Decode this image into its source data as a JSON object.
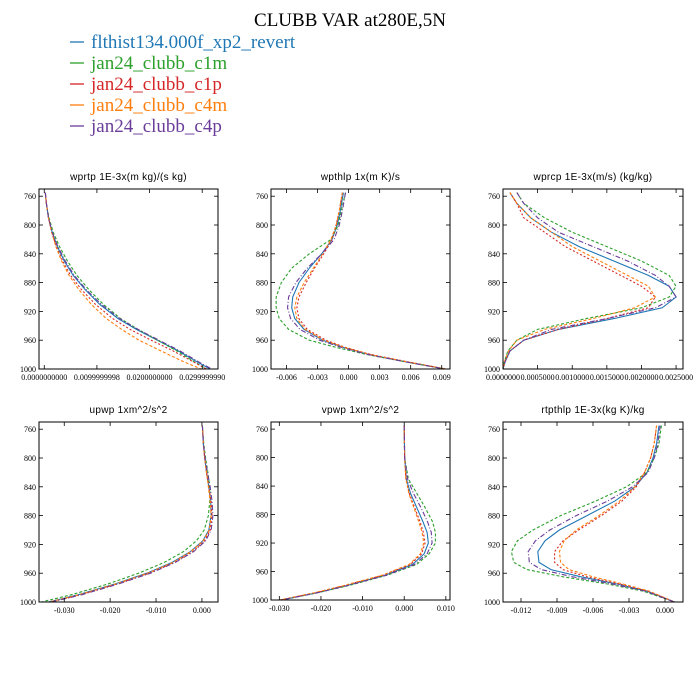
{
  "figure_title": "CLUBB VAR at280E,5N",
  "legend": [
    {
      "label": "flthist134.000f_xp2_revert",
      "color": "#1f77b4"
    },
    {
      "label": "jan24_clubb_c1m",
      "color": "#2ca02c"
    },
    {
      "label": "jan24_clubb_c1p",
      "color": "#d62728"
    },
    {
      "label": "jan24_clubb_c4m",
      "color": "#ff7f0e"
    },
    {
      "label": "jan24_clubb_c4p",
      "color": "#6a3d9a"
    }
  ],
  "chart_data": [
    {
      "type": "line",
      "title": "wprtp  1E-3x(m kg)/(s kg)",
      "xlim": [
        -0.001,
        0.033
      ],
      "ylim": [
        1000,
        750
      ],
      "yticks": [
        760,
        800,
        840,
        880,
        920,
        960,
        1000
      ],
      "xticks": [
        0.0,
        0.01,
        0.02,
        0.03
      ],
      "xtick_labels": [
        "0.0000000000",
        "0.0099999998",
        "0.0200000000",
        "0.0299999990"
      ],
      "y": [
        755,
        770,
        790,
        810,
        830,
        850,
        870,
        890,
        910,
        930,
        945,
        960,
        975,
        990,
        1000
      ],
      "series": [
        {
          "name": "flthist134.000f_xp2_revert",
          "values": [
            0.0002,
            0.0004,
            0.0008,
            0.0015,
            0.0025,
            0.0038,
            0.0055,
            0.0078,
            0.0105,
            0.014,
            0.0175,
            0.0215,
            0.0255,
            0.029,
            0.0315
          ]
        },
        {
          "name": "jan24_clubb_c1m",
          "values": [
            0.0002,
            0.0004,
            0.0009,
            0.0017,
            0.0029,
            0.0044,
            0.0062,
            0.0085,
            0.0112,
            0.0145,
            0.0178,
            0.0215,
            0.0252,
            0.0285,
            0.0308
          ]
        },
        {
          "name": "jan24_clubb_c1p",
          "values": [
            0.0002,
            0.0004,
            0.0008,
            0.0014,
            0.0023,
            0.0035,
            0.005,
            0.0071,
            0.0097,
            0.013,
            0.0163,
            0.0203,
            0.0245,
            0.0283,
            0.0308
          ]
        },
        {
          "name": "jan24_clubb_c4m",
          "values": [
            0.0002,
            0.0004,
            0.0008,
            0.0014,
            0.0022,
            0.0033,
            0.0047,
            0.0066,
            0.0089,
            0.0118,
            0.0147,
            0.018,
            0.0222,
            0.0265,
            0.0298
          ]
        },
        {
          "name": "jan24_clubb_c4p",
          "values": [
            0.0002,
            0.0004,
            0.0008,
            0.0015,
            0.0026,
            0.004,
            0.0057,
            0.008,
            0.0108,
            0.0143,
            0.0178,
            0.0218,
            0.0258,
            0.0293,
            0.0318
          ]
        }
      ]
    },
    {
      "type": "line",
      "title": "wpthlp  1x(m K)/s",
      "xlim": [
        -0.0075,
        0.0098
      ],
      "ylim": [
        1000,
        750
      ],
      "yticks": [
        760,
        800,
        840,
        880,
        920,
        960,
        1000
      ],
      "xticks": [
        -0.006,
        -0.003,
        0.0,
        0.003,
        0.006,
        0.009
      ],
      "xtick_labels": [
        "-0.006",
        "-0.003",
        "0.000",
        "0.003",
        "0.006",
        "0.009"
      ],
      "y": [
        755,
        780,
        800,
        820,
        840,
        860,
        880,
        900,
        915,
        930,
        945,
        960,
        970,
        980,
        990,
        1000
      ],
      "series": [
        {
          "name": "flthist134.000f_xp2_revert",
          "values": [
            -0.0005,
            -0.0008,
            -0.0011,
            -0.0016,
            -0.0026,
            -0.0038,
            -0.0048,
            -0.0054,
            -0.0055,
            -0.0052,
            -0.0043,
            -0.0025,
            -0.0005,
            0.002,
            0.0055,
            0.0093
          ]
        },
        {
          "name": "jan24_clubb_c1m",
          "values": [
            -0.0003,
            -0.0007,
            -0.001,
            -0.0017,
            -0.0038,
            -0.0055,
            -0.0065,
            -0.007,
            -0.007,
            -0.0067,
            -0.0058,
            -0.0038,
            -0.0012,
            0.0018,
            0.0055,
            0.0094
          ]
        },
        {
          "name": "jan24_clubb_c1p",
          "values": [
            -0.0006,
            -0.0009,
            -0.0012,
            -0.0016,
            -0.0024,
            -0.0033,
            -0.0041,
            -0.0048,
            -0.005,
            -0.0048,
            -0.004,
            -0.0022,
            -0.0003,
            0.0022,
            0.0057,
            0.0094
          ]
        },
        {
          "name": "jan24_clubb_c4m",
          "values": [
            -0.0006,
            -0.0009,
            -0.0012,
            -0.0017,
            -0.0025,
            -0.0034,
            -0.0043,
            -0.005,
            -0.0052,
            -0.005,
            -0.0042,
            -0.0024,
            -0.0004,
            0.0021,
            0.0056,
            0.0094
          ]
        },
        {
          "name": "jan24_clubb_c4p",
          "values": [
            -0.0003,
            -0.0006,
            -0.0009,
            -0.0014,
            -0.0026,
            -0.004,
            -0.0051,
            -0.0058,
            -0.0059,
            -0.0056,
            -0.0047,
            -0.0028,
            -0.0007,
            0.0019,
            0.0055,
            0.0093
          ]
        }
      ]
    },
    {
      "type": "line",
      "title": "wprcp  1E-3x(m/s) (kg/kg)",
      "xlim": [
        0.0,
        0.0026
      ],
      "ylim": [
        1000,
        750
      ],
      "yticks": [
        760,
        800,
        840,
        880,
        920,
        960,
        1000
      ],
      "xticks": [
        0.0,
        0.0005,
        0.001,
        0.0015,
        0.002,
        0.0025
      ],
      "xtick_labels": [
        "0.0000000",
        "0.0005000",
        "0.0010000",
        "0.0015000",
        "0.0020000",
        "0.0025000"
      ],
      "y": [
        755,
        770,
        790,
        810,
        830,
        850,
        870,
        885,
        900,
        915,
        930,
        945,
        960,
        975,
        990,
        1000
      ],
      "series": [
        {
          "name": "flthist134.000f_xp2_revert",
          "values": [
            0.0001,
            0.0002,
            0.0004,
            0.0007,
            0.0011,
            0.0016,
            0.0021,
            0.0024,
            0.0025,
            0.0023,
            0.0016,
            0.0008,
            0.0003,
            0.0001,
            3e-05,
            0.0
          ]
        },
        {
          "name": "jan24_clubb_c1m",
          "values": [
            0.0002,
            0.0003,
            0.0006,
            0.001,
            0.0015,
            0.002,
            0.0024,
            0.0025,
            0.0024,
            0.002,
            0.0012,
            0.0005,
            0.0002,
            7e-05,
            2e-05,
            0.0
          ]
        },
        {
          "name": "jan24_clubb_c1p",
          "values": [
            0.0001,
            0.0002,
            0.0003,
            0.0006,
            0.0009,
            0.0013,
            0.0017,
            0.002,
            0.0022,
            0.0021,
            0.0015,
            0.0008,
            0.0003,
            0.0001,
            3e-05,
            0.0
          ]
        },
        {
          "name": "jan24_clubb_c4m",
          "values": [
            0.0001,
            0.0002,
            0.0004,
            0.0007,
            0.001,
            0.0014,
            0.0018,
            0.0021,
            0.0022,
            0.0019,
            0.0013,
            0.0006,
            0.0002,
            8e-05,
            2e-05,
            0.0
          ]
        },
        {
          "name": "jan24_clubb_c4p",
          "values": [
            0.0002,
            0.0003,
            0.0005,
            0.0008,
            0.0013,
            0.0018,
            0.0022,
            0.0024,
            0.0025,
            0.0022,
            0.0015,
            0.0007,
            0.0003,
            0.0001,
            3e-05,
            0.0
          ]
        }
      ]
    },
    {
      "type": "line",
      "title": "upwp  1xm^2/s^2",
      "xlim": [
        -0.0355,
        0.0035
      ],
      "ylim": [
        1000,
        750
      ],
      "yticks": [
        760,
        800,
        840,
        880,
        920,
        960,
        1000
      ],
      "xticks": [
        -0.03,
        -0.02,
        -0.01,
        0.0
      ],
      "xtick_labels": [
        "-0.030",
        "-0.020",
        "-0.010",
        "0.000"
      ],
      "y": [
        755,
        780,
        800,
        820,
        840,
        860,
        880,
        900,
        915,
        930,
        945,
        960,
        975,
        990,
        1000
      ],
      "series": [
        {
          "name": "flthist134.000f_xp2_revert",
          "values": [
            0.0001,
            0.0003,
            0.0006,
            0.001,
            0.0015,
            0.0019,
            0.002,
            0.0015,
            0.0002,
            -0.0025,
            -0.0065,
            -0.012,
            -0.019,
            -0.027,
            -0.0335
          ]
        },
        {
          "name": "jan24_clubb_c1m",
          "values": [
            0.0001,
            0.0004,
            0.0008,
            0.0013,
            0.0017,
            0.0017,
            0.0014,
            0.0005,
            -0.0012,
            -0.004,
            -0.0082,
            -0.0138,
            -0.0205,
            -0.0285,
            -0.035
          ]
        },
        {
          "name": "jan24_clubb_c1p",
          "values": [
            0.0001,
            0.0003,
            0.0006,
            0.001,
            0.0015,
            0.002,
            0.0022,
            0.0018,
            0.0006,
            -0.002,
            -0.006,
            -0.0115,
            -0.0185,
            -0.0265,
            -0.033
          ]
        },
        {
          "name": "jan24_clubb_c4m",
          "values": [
            0.0001,
            0.0003,
            0.0006,
            0.001,
            0.0014,
            0.0018,
            0.002,
            0.0016,
            0.0003,
            -0.0024,
            -0.0063,
            -0.0118,
            -0.0188,
            -0.0268,
            -0.0333
          ]
        },
        {
          "name": "jan24_clubb_c4p",
          "values": [
            0.0001,
            0.0003,
            0.0007,
            0.0012,
            0.0018,
            0.0022,
            0.0024,
            0.002,
            0.0008,
            -0.0018,
            -0.0058,
            -0.0112,
            -0.0182,
            -0.0262,
            -0.0328
          ]
        }
      ]
    },
    {
      "type": "line",
      "title": "vpwp  1xm^2/s^2",
      "xlim": [
        -0.032,
        0.011
      ],
      "ylim": [
        1000,
        750
      ],
      "yticks": [
        760,
        800,
        840,
        880,
        920,
        960,
        1000
      ],
      "xticks": [
        -0.03,
        -0.02,
        -0.01,
        0.0,
        0.01
      ],
      "xtick_labels": [
        "-0.030",
        "-0.020",
        "-0.010",
        "0.000",
        "0.010"
      ],
      "y": [
        755,
        800,
        830,
        850,
        870,
        890,
        905,
        920,
        935,
        950,
        965,
        980,
        990,
        1000
      ],
      "series": [
        {
          "name": "flthist134.000f_xp2_revert",
          "values": [
            0.0,
            0.0001,
            0.0005,
            0.0015,
            0.003,
            0.0045,
            0.0055,
            0.0058,
            0.0048,
            0.002,
            -0.0045,
            -0.014,
            -0.021,
            -0.0295
          ]
        },
        {
          "name": "jan24_clubb_c1m",
          "values": [
            0.0,
            0.0001,
            0.001,
            0.003,
            0.005,
            0.0068,
            0.0075,
            0.0075,
            0.006,
            0.003,
            -0.004,
            -0.0135,
            -0.021,
            -0.0295
          ]
        },
        {
          "name": "jan24_clubb_c1p",
          "values": [
            0.0,
            0.0001,
            0.0004,
            0.0012,
            0.0025,
            0.0038,
            0.0046,
            0.005,
            0.0042,
            0.0015,
            -0.005,
            -0.0145,
            -0.0215,
            -0.0298
          ]
        },
        {
          "name": "jan24_clubb_c4m",
          "values": [
            0.0,
            0.0001,
            0.0004,
            0.0011,
            0.0023,
            0.0035,
            0.0043,
            0.0047,
            0.0039,
            0.0012,
            -0.0052,
            -0.0147,
            -0.0217,
            -0.03
          ]
        },
        {
          "name": "jan24_clubb_c4p",
          "values": [
            0.0,
            0.0001,
            0.0008,
            0.0022,
            0.004,
            0.0056,
            0.0065,
            0.0067,
            0.0055,
            0.0025,
            -0.0042,
            -0.0138,
            -0.021,
            -0.0295
          ]
        }
      ]
    },
    {
      "type": "line",
      "title": "rtpthlp  1E-3x(kg K)/kg",
      "xlim": [
        -0.0135,
        0.0015
      ],
      "ylim": [
        1000,
        750
      ],
      "yticks": [
        760,
        800,
        840,
        880,
        920,
        960,
        1000
      ],
      "xticks": [
        -0.012,
        -0.009,
        -0.006,
        -0.003,
        0.0
      ],
      "xtick_labels": [
        "-0.012",
        "-0.009",
        "-0.006",
        "-0.003",
        "0.000"
      ],
      "y": [
        755,
        780,
        800,
        820,
        840,
        860,
        880,
        900,
        915,
        930,
        945,
        955,
        965,
        975,
        985,
        1000
      ],
      "series": [
        {
          "name": "flthist134.000f_xp2_revert",
          "values": [
            -0.0005,
            -0.0007,
            -0.001,
            -0.0015,
            -0.0025,
            -0.0042,
            -0.0065,
            -0.0088,
            -0.01,
            -0.0106,
            -0.0105,
            -0.0095,
            -0.007,
            -0.004,
            -0.0015,
            0.0008
          ]
        },
        {
          "name": "jan24_clubb_c1m",
          "values": [
            -0.0003,
            -0.0005,
            -0.0009,
            -0.0015,
            -0.0032,
            -0.0058,
            -0.0087,
            -0.011,
            -0.0123,
            -0.0128,
            -0.0126,
            -0.0115,
            -0.0085,
            -0.0048,
            -0.0018,
            0.0008
          ]
        },
        {
          "name": "jan24_clubb_c1p",
          "values": [
            -0.0007,
            -0.0009,
            -0.0012,
            -0.0017,
            -0.0024,
            -0.0036,
            -0.0053,
            -0.0072,
            -0.0085,
            -0.0092,
            -0.0092,
            -0.0085,
            -0.0065,
            -0.0038,
            -0.0014,
            0.0008
          ]
        },
        {
          "name": "jan24_clubb_c4m",
          "values": [
            -0.0007,
            -0.0009,
            -0.0012,
            -0.0017,
            -0.0025,
            -0.0038,
            -0.0055,
            -0.0074,
            -0.0084,
            -0.0088,
            -0.0087,
            -0.008,
            -0.006,
            -0.0035,
            -0.0013,
            0.0008
          ]
        },
        {
          "name": "jan24_clubb_c4p",
          "values": [
            -0.0004,
            -0.0006,
            -0.0009,
            -0.0014,
            -0.0027,
            -0.0048,
            -0.0074,
            -0.0096,
            -0.0108,
            -0.0114,
            -0.0113,
            -0.0103,
            -0.0077,
            -0.0044,
            -0.0016,
            0.0008
          ]
        }
      ]
    }
  ]
}
